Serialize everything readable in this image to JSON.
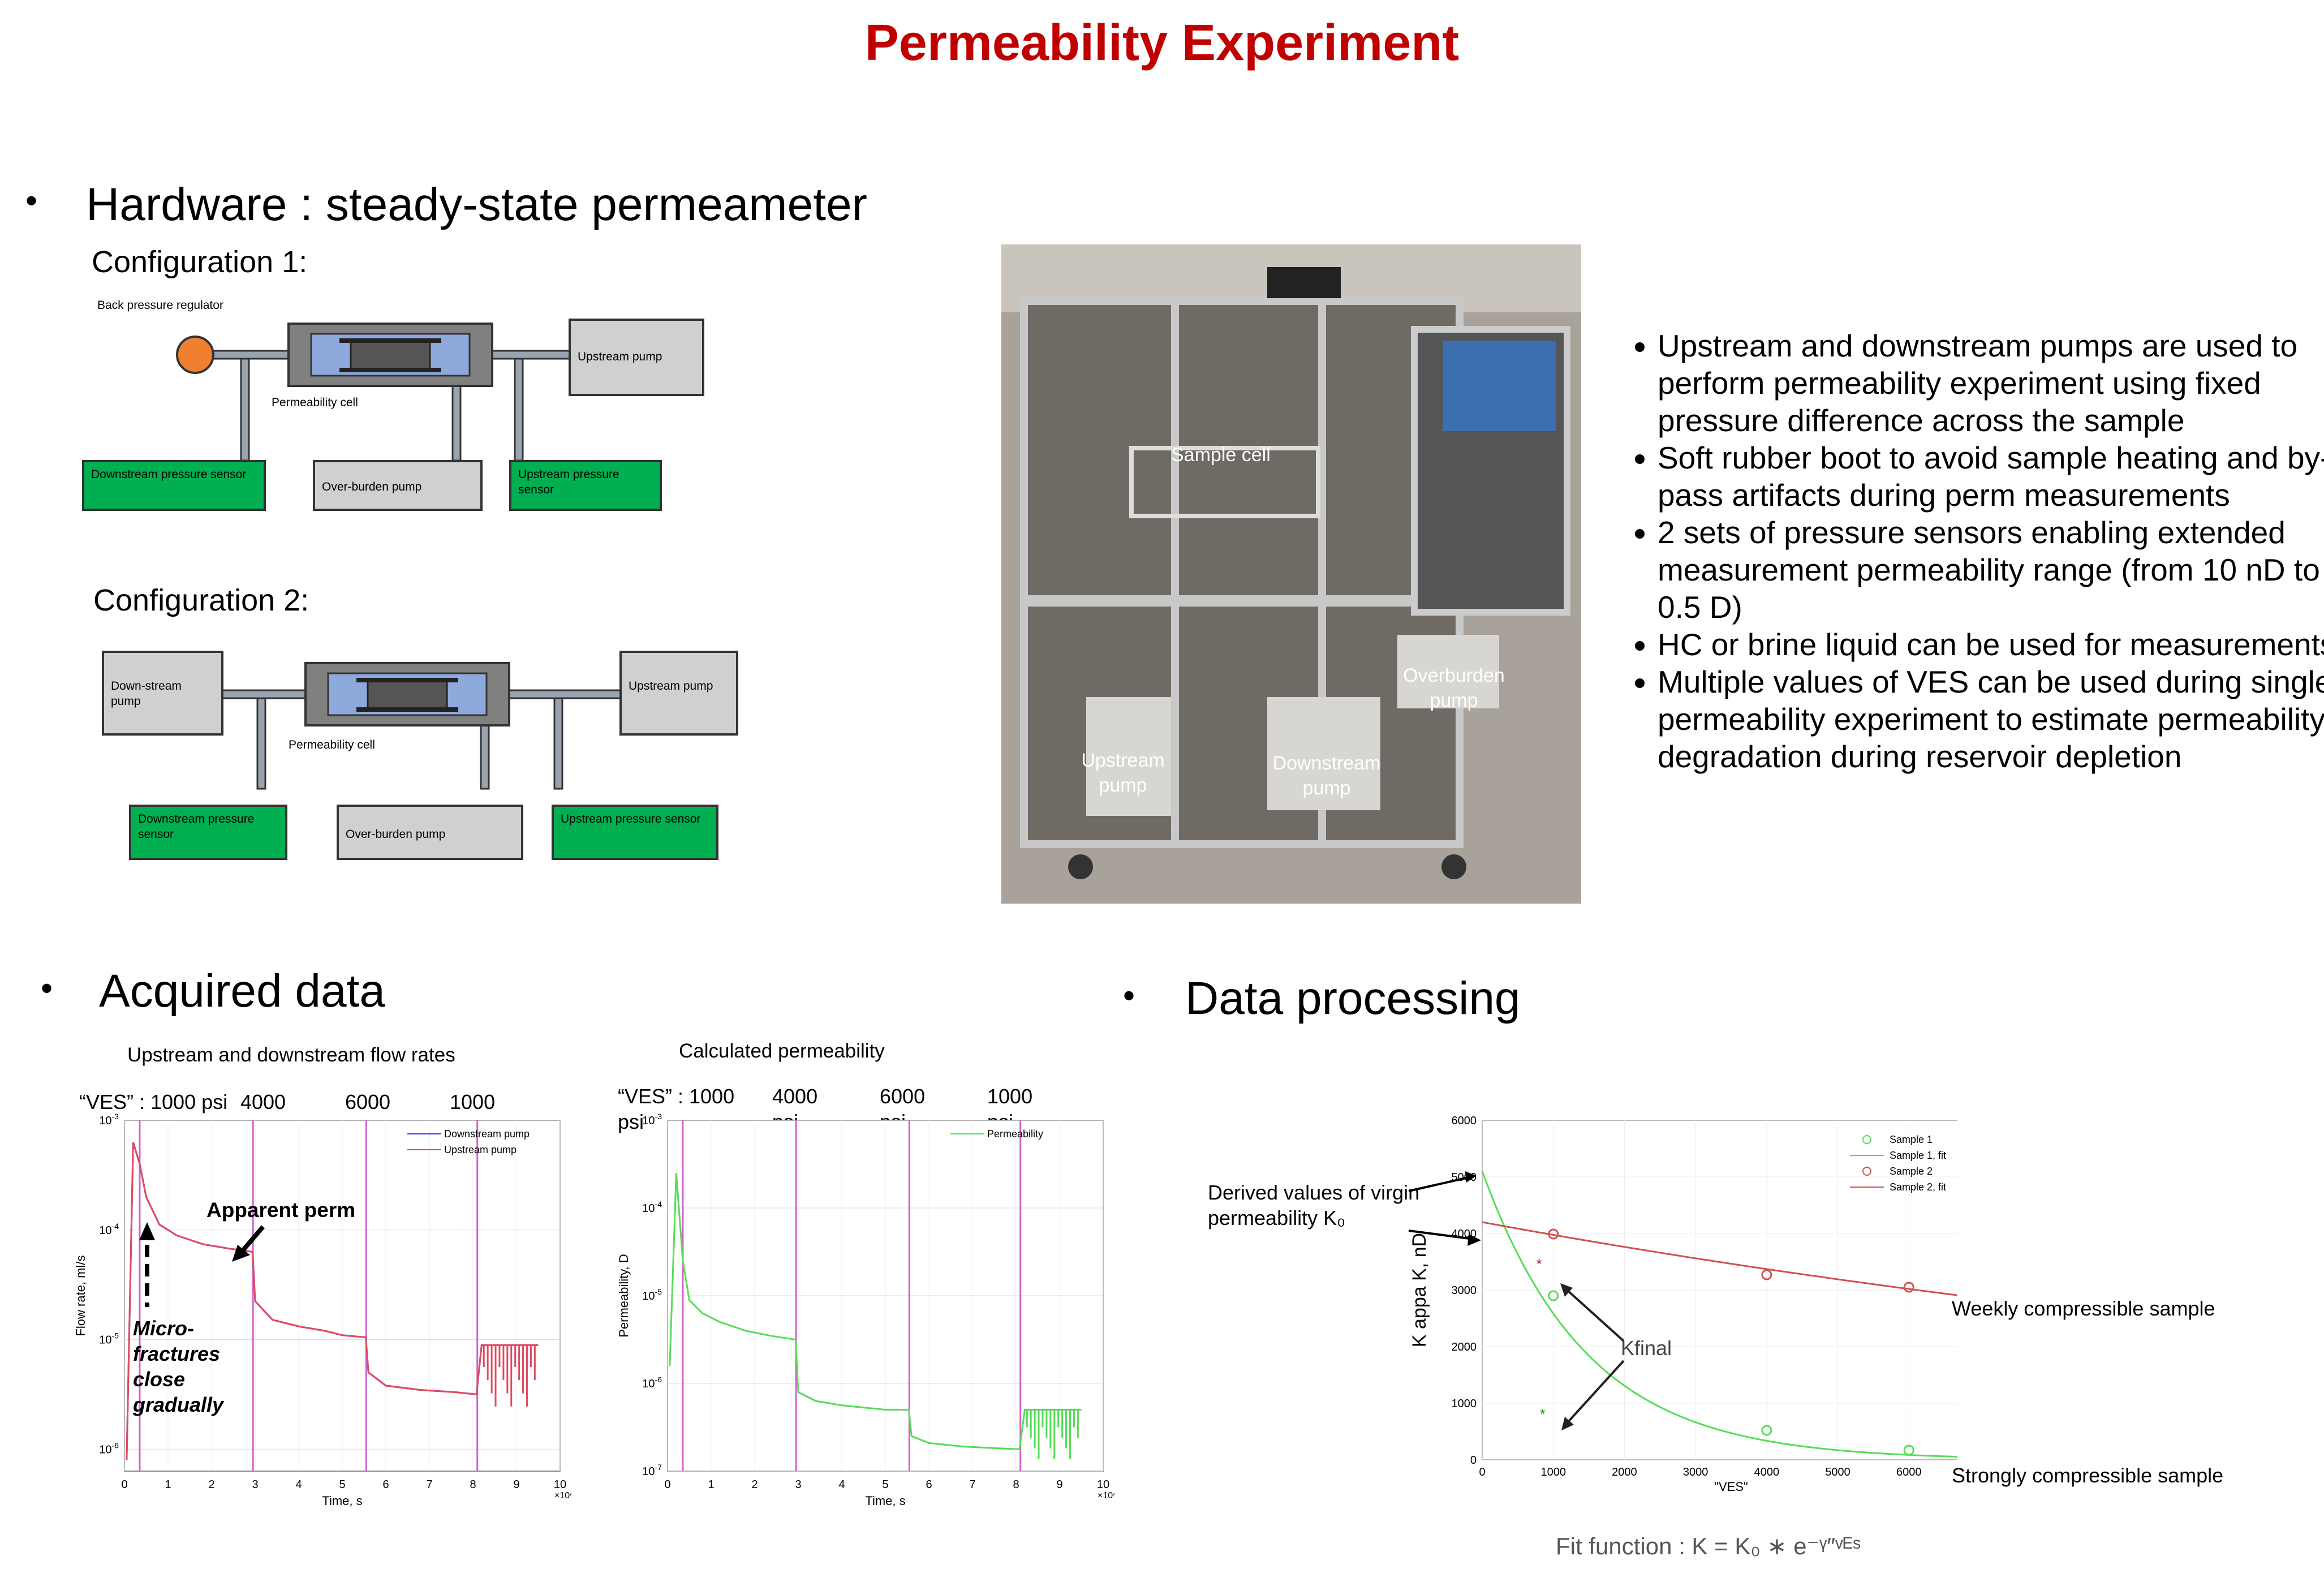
{
  "page_title": "Permeability Experiment",
  "hardware": {
    "heading": "Hardware : steady-state  permeameter",
    "config1": {
      "label": "Configuration 1:",
      "back_pressure": "Back pressure regulator",
      "upstream_pump": "Upstream pump",
      "cell": "Permeability cell",
      "downstream_sensor": "Downstream pressure sensor",
      "overburden_pump": "Over-burden pump",
      "upstream_sensor": "Upstream pressure sensor"
    },
    "config2": {
      "label": "Configuration 2:",
      "downstream_pump": "Down-stream pump",
      "upstream_pump": "Upstream pump",
      "cell": "Permeability cell",
      "downstream_sensor": "Downstream pressure sensor",
      "overburden_pump": "Over-burden pump",
      "upstream_sensor": "Upstream pressure sensor"
    },
    "photo_labels": {
      "sample_cell": "Sample cell",
      "overburden": "Overburden pump",
      "upstream": "Upstream pump",
      "downstream": "Downstream pump"
    },
    "bullets": [
      "Upstream and downstream pumps are used to perform permeability experiment using fixed pressure difference across the sample",
      "Soft rubber boot to avoid sample heating and by-pass artifacts during perm measurements",
      "2 sets of pressure sensors enabling extended measurement permeability range (from 10 nD to 0.5 D)",
      "HC or brine liquid can be used for measurements",
      "Multiple values of VES can be used during single permeability experiment  to estimate permeability degradation during reservoir depletion"
    ]
  },
  "acquired": {
    "heading": "Acquired data",
    "chart1_title": "Upstream and downstream flow rates",
    "chart2_title": "Calculated permeability",
    "ves_labels": [
      "“VES” : 1000 psi",
      "4000 psi",
      "6000 psi",
      "1000 psi"
    ],
    "apparent_perm": "Apparent perm",
    "microfractures": "Micro-fractures close gradually"
  },
  "processing": {
    "heading": "Data processing",
    "virgin_label": "Derived values of virgin permeability  K₀",
    "kfinal": "Kfinal",
    "weekly": "Weekly compressible  sample",
    "strongly": "Strongly compressible  sample",
    "fit_function": "Fit function : K = K₀ ∗ e⁻ᵞ″ᵛᴱˢ"
  },
  "colors": {
    "title": "#c00000",
    "green_box": "#00b050",
    "pump_box": "#d0d0d0",
    "cell_blue": "#8ea9db"
  },
  "chart_data": [
    {
      "type": "line",
      "title": "",
      "xlabel": "Time, s",
      "ylabel": "Flow rate, ml/s",
      "x_multiplier": "×10^5",
      "xlim": [
        0,
        10
      ],
      "ylog": true,
      "ylim_exp": [
        -6.2,
        -3
      ],
      "xticks": [
        0,
        1,
        2,
        3,
        4,
        5,
        6,
        7,
        8,
        9,
        10
      ],
      "yticks_exp": [
        -6,
        -5,
        -4,
        -3
      ],
      "vlines": [
        0.35,
        2.95,
        5.55,
        8.1
      ],
      "series": [
        {
          "name": "Downstream pump",
          "color": "#3b3bdc",
          "x": [
            0.05,
            0.2,
            0.35,
            0.5,
            0.8,
            1.2,
            1.8,
            2.4,
            2.94,
            3.0,
            3.4,
            4.0,
            4.6,
            5.0,
            5.54,
            5.6,
            6.0,
            6.8,
            7.6,
            8.08,
            8.2,
            8.6,
            9.0,
            9.5
          ],
          "y": [
            -6.1,
            -3.2,
            -3.4,
            -3.7,
            -3.95,
            -4.05,
            -4.13,
            -4.17,
            -4.2,
            -4.65,
            -4.82,
            -4.88,
            -4.92,
            -4.96,
            -4.98,
            -5.3,
            -5.42,
            -5.46,
            -5.48,
            -5.5,
            -5.05,
            -5.05,
            -5.05,
            -5.05
          ]
        },
        {
          "name": "Upstream pump",
          "color": "#e24a60",
          "x": [
            0.05,
            0.2,
            0.35,
            0.5,
            0.8,
            1.2,
            1.8,
            2.4,
            2.94,
            3.0,
            3.4,
            4.0,
            4.6,
            5.0,
            5.54,
            5.6,
            6.0,
            6.8,
            7.6,
            8.08,
            8.2,
            8.6,
            9.0,
            9.5
          ],
          "y": [
            -6.1,
            -3.2,
            -3.4,
            -3.7,
            -3.95,
            -4.05,
            -4.13,
            -4.17,
            -4.2,
            -4.65,
            -4.82,
            -4.88,
            -4.92,
            -4.96,
            -4.98,
            -5.3,
            -5.42,
            -5.46,
            -5.48,
            -5.5,
            -5.05,
            -5.05,
            -5.05,
            -5.05
          ]
        }
      ]
    },
    {
      "type": "line",
      "title": "",
      "xlabel": "Time, s",
      "ylabel": "Permeability, D",
      "x_multiplier": "×10^5",
      "xlim": [
        0,
        10
      ],
      "ylog": true,
      "ylim_exp": [
        -7,
        -3
      ],
      "xticks": [
        0,
        1,
        2,
        3,
        4,
        5,
        6,
        7,
        8,
        9,
        10
      ],
      "yticks_exp": [
        -7,
        -6,
        -5,
        -4,
        -3
      ],
      "vlines": [
        0.35,
        2.95,
        5.55,
        8.1
      ],
      "series": [
        {
          "name": "Permeability",
          "color": "#55dd55",
          "x": [
            0.05,
            0.2,
            0.35,
            0.5,
            0.8,
            1.2,
            1.8,
            2.4,
            2.94,
            3.0,
            3.4,
            4.0,
            4.6,
            5.0,
            5.54,
            5.6,
            6.0,
            6.8,
            7.6,
            8.08,
            8.2,
            8.6,
            9.0,
            9.5
          ],
          "y": [
            -5.8,
            -3.6,
            -4.6,
            -5.05,
            -5.2,
            -5.3,
            -5.4,
            -5.46,
            -5.5,
            -6.1,
            -6.2,
            -6.25,
            -6.28,
            -6.3,
            -6.3,
            -6.6,
            -6.68,
            -6.72,
            -6.74,
            -6.75,
            -6.3,
            -6.3,
            -6.3,
            -6.3
          ]
        }
      ]
    },
    {
      "type": "scatter",
      "title": "",
      "xlabel": "\"VES\"",
      "ylabel": "K appa    K, nD",
      "xlim": [
        0,
        7000
      ],
      "ylim": [
        0,
        6000
      ],
      "xticks": [
        0,
        1000,
        2000,
        3000,
        4000,
        5000,
        6000,
        7000
      ],
      "yticks": [
        0,
        1000,
        2000,
        3000,
        4000,
        5000,
        6000
      ],
      "series": [
        {
          "name": "Sample 1",
          "color": "#55dd55",
          "marker": "circle",
          "x": [
            1000,
            4000,
            6000
          ],
          "y": [
            2900,
            520,
            170
          ]
        },
        {
          "name": "Sample 1, fit",
          "color": "#55dd55",
          "marker": "line",
          "k0": 5100,
          "gamma": 0.00068
        },
        {
          "name": "Sample 2",
          "color": "#d05050",
          "marker": "circle",
          "x": [
            1000,
            4000,
            6000
          ],
          "y": [
            3990,
            3270,
            3050
          ]
        },
        {
          "name": "Sample 2, fit",
          "color": "#d05050",
          "marker": "line",
          "k0": 4200,
          "gamma": 5.5e-05
        }
      ],
      "final_points": [
        {
          "x": 800,
          "y": 3450,
          "color": "#d02020"
        },
        {
          "x": 850,
          "y": 800,
          "color": "#20a020"
        }
      ]
    }
  ]
}
